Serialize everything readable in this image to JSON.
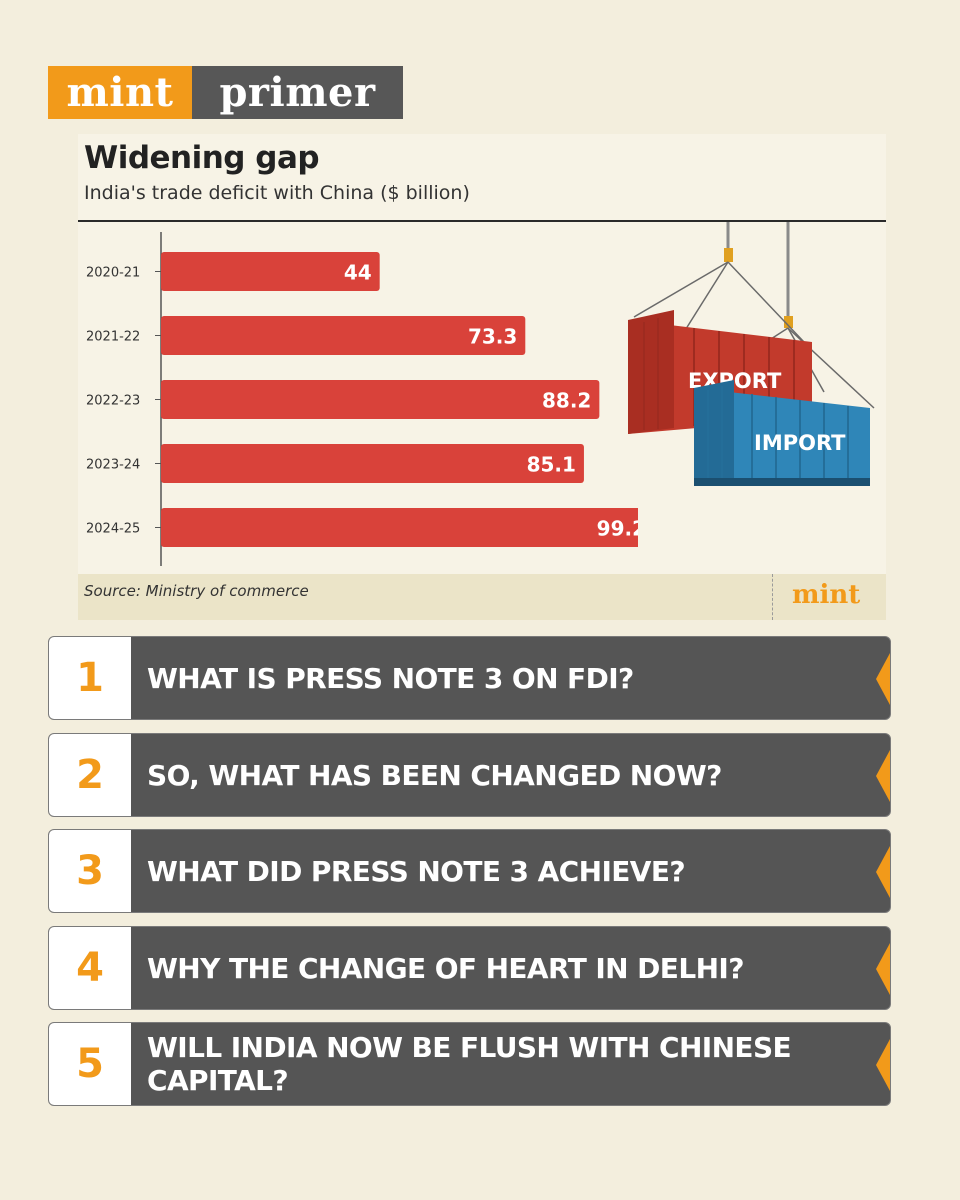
{
  "masthead": {
    "brand": "mint",
    "section": "primer"
  },
  "colors": {
    "accent": "#f29a1a",
    "bar": "#d9423a",
    "dark": "#555555",
    "background": "#f3eedd"
  },
  "chart_data": {
    "type": "bar",
    "orientation": "horizontal",
    "title": "Widening gap",
    "subtitle": "India's trade deficit with China ($ billion)",
    "categories": [
      "2020-21",
      "2021-22",
      "2022-23",
      "2023-24",
      "2024-25"
    ],
    "values": [
      44,
      73.3,
      88.2,
      85.1,
      99.2
    ],
    "value_labels": [
      "44",
      "73.3",
      "88.2",
      "85.1",
      "99.2"
    ],
    "xlim": [
      0,
      100
    ],
    "grid": false,
    "legend": "none",
    "source": "Source: Ministry of commerce",
    "logo": "mint"
  },
  "illustration": {
    "export_label": "EXPORT",
    "import_label": "IMPORT"
  },
  "questions": [
    {
      "num": "1",
      "text": "WHAT IS PRESS NOTE 3 ON FDI?"
    },
    {
      "num": "2",
      "text": "SO, WHAT HAS BEEN CHANGED NOW?"
    },
    {
      "num": "3",
      "text": "WHAT DID PRESS NOTE 3 ACHIEVE?"
    },
    {
      "num": "4",
      "text": "WHY THE CHANGE OF HEART IN DELHI?"
    },
    {
      "num": "5",
      "text": "WILL INDIA NOW BE FLUSH WITH CHINESE CAPITAL?"
    }
  ]
}
